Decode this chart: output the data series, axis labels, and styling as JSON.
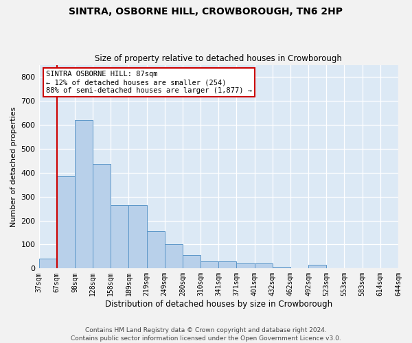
{
  "title": "SINTRA, OSBORNE HILL, CROWBOROUGH, TN6 2HP",
  "subtitle": "Size of property relative to detached houses in Crowborough",
  "xlabel": "Distribution of detached houses by size in Crowborough",
  "ylabel": "Number of detached properties",
  "categories": [
    "37sqm",
    "67sqm",
    "98sqm",
    "128sqm",
    "158sqm",
    "189sqm",
    "219sqm",
    "249sqm",
    "280sqm",
    "310sqm",
    "341sqm",
    "371sqm",
    "401sqm",
    "432sqm",
    "462sqm",
    "492sqm",
    "523sqm",
    "553sqm",
    "583sqm",
    "614sqm",
    "644sqm"
  ],
  "bar_heights": [
    40,
    385,
    620,
    435,
    265,
    265,
    155,
    100,
    55,
    30,
    30,
    20,
    20,
    8,
    0,
    15,
    0,
    0,
    0,
    0
  ],
  "bar_color": "#b8d0ea",
  "bar_edge_color": "#5b96c8",
  "plot_bg_color": "#dce9f5",
  "fig_bg_color": "#f2f2f2",
  "grid_color": "#ffffff",
  "vline_color": "#cc0000",
  "vline_x": 1.0,
  "annotation_text": "SINTRA OSBORNE HILL: 87sqm\n← 12% of detached houses are smaller (254)\n88% of semi-detached houses are larger (1,877) →",
  "ylim": [
    0,
    850
  ],
  "yticks": [
    0,
    100,
    200,
    300,
    400,
    500,
    600,
    700,
    800
  ],
  "footer": "Contains HM Land Registry data © Crown copyright and database right 2024.\nContains public sector information licensed under the Open Government Licence v3.0."
}
